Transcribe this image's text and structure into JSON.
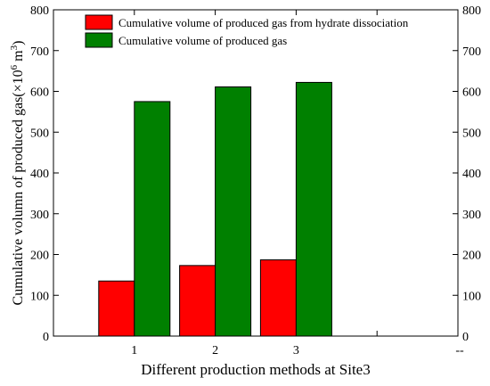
{
  "chart_data": {
    "type": "bar",
    "categories": [
      "1",
      "2",
      "3"
    ],
    "extra_xtick_label": "--",
    "xlabel": "Different production methods at Site3",
    "ylabel_text": "Cumulative volumn of produced gas",
    "ylabel_unit_prefix": "(×10",
    "ylabel_unit_exp1": "6",
    "ylabel_unit_mid": " m",
    "ylabel_unit_exp2": "3",
    "ylabel_unit_suffix": ")",
    "ylim": [
      0,
      800
    ],
    "yticks": [
      0,
      100,
      200,
      300,
      400,
      500,
      600,
      700,
      800
    ],
    "secondary_y_axis": true,
    "legend_position": "top",
    "series": [
      {
        "name": "Cumulative volume of produced gas from hydrate dissociation",
        "color": "#ff0000",
        "values": [
          135,
          173,
          187
        ]
      },
      {
        "name": "Cumulative volume of produced gas",
        "color": "#008000",
        "values": [
          575,
          611,
          622
        ]
      }
    ]
  }
}
